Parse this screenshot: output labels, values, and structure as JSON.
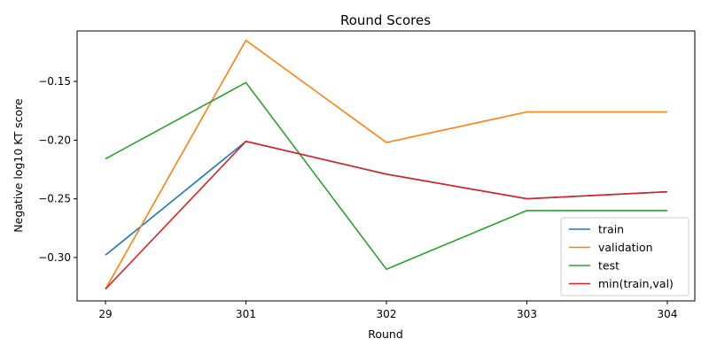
{
  "chart_data": {
    "type": "line",
    "title": "Round Scores",
    "xlabel": "Round",
    "ylabel": "Negative log10 KT score",
    "categories": [
      "29",
      "301",
      "302",
      "303",
      "304"
    ],
    "ylim": [
      -0.337,
      -0.107
    ],
    "yticks": [
      -0.3,
      -0.25,
      -0.2,
      -0.15
    ],
    "ytick_labels": [
      "−0.30",
      "−0.25",
      "−0.20",
      "−0.15"
    ],
    "grid": false,
    "legend_position": "bottom-right",
    "series": [
      {
        "name": "train",
        "color": "#1f77b4",
        "values": [
          -0.298,
          -0.201,
          -0.229,
          -0.25,
          -0.244
        ]
      },
      {
        "name": "validation",
        "color": "#ff7f0e",
        "values": [
          -0.327,
          -0.115,
          -0.202,
          -0.176,
          -0.176
        ]
      },
      {
        "name": "test",
        "color": "#2ca02c",
        "values": [
          -0.216,
          -0.151,
          -0.31,
          -0.26,
          -0.26
        ]
      },
      {
        "name": "min(train,val)",
        "color": "#d62728",
        "values": [
          -0.327,
          -0.201,
          -0.229,
          -0.25,
          -0.244
        ]
      }
    ]
  }
}
